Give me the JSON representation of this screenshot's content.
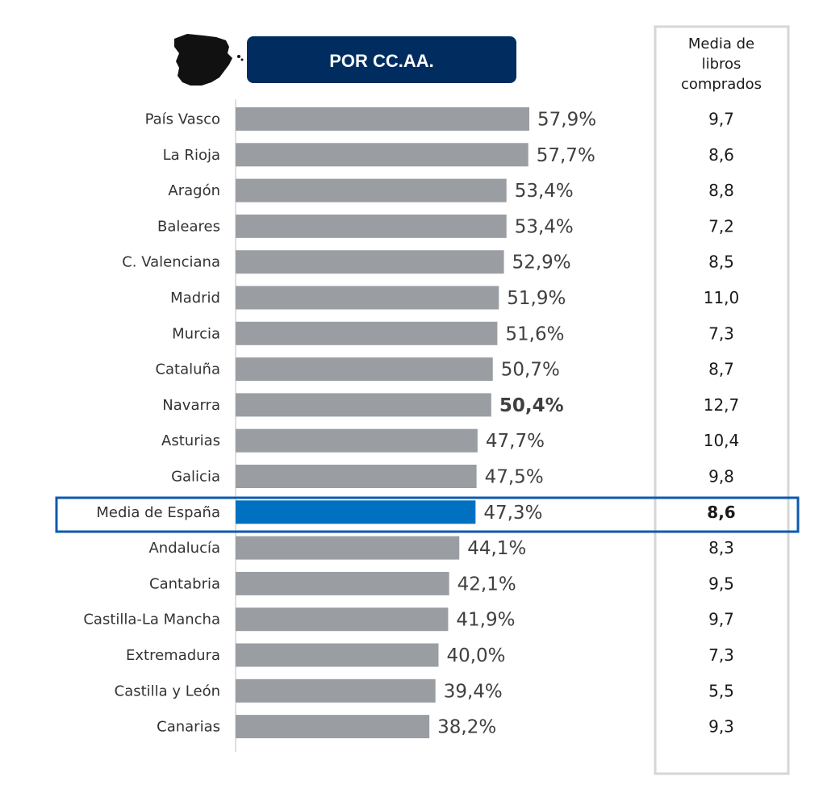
{
  "header": {
    "title": "POR CC.AA.",
    "title_bg": "#002C5F",
    "map_icon": "spain-map-icon"
  },
  "side_column": {
    "header_lines": [
      "Media de",
      "libros",
      "comprados"
    ]
  },
  "colors": {
    "bar": "#9a9ea3",
    "highlight_bar": "#0070C0",
    "highlight_frame": "#0E5AAE",
    "side_frame": "#d6d6d6"
  },
  "chart_data": {
    "type": "bar",
    "orientation": "horizontal",
    "xlim": [
      0,
      100
    ],
    "categories": [
      "País Vasco",
      "La Rioja",
      "Aragón",
      "Baleares",
      "C. Valenciana",
      "Madrid",
      "Murcia",
      "Cataluña",
      "Navarra",
      "Asturias",
      "Galicia",
      "Media de España",
      "Andalucía",
      "Cantabria",
      "Castilla-La Mancha",
      "Extremadura",
      "Castilla y León",
      "Canarias"
    ],
    "values": [
      57.9,
      57.7,
      53.4,
      53.4,
      52.9,
      51.9,
      51.6,
      50.7,
      50.4,
      47.7,
      47.5,
      47.3,
      44.1,
      42.1,
      41.9,
      40.0,
      39.4,
      38.2
    ],
    "value_labels": [
      "57,9%",
      "57,7%",
      "53,4%",
      "53,4%",
      "52,9%",
      "51,9%",
      "51,6%",
      "50,7%",
      "50,4%",
      "47,7%",
      "47,5%",
      "47,3%",
      "44,1%",
      "42,1%",
      "41,9%",
      "40,0%",
      "39,4%",
      "38,2%"
    ],
    "books_purchased": [
      "9,7",
      "8,6",
      "8,8",
      "7,2",
      "8,5",
      "11,0",
      "7,3",
      "8,7",
      "12,7",
      "10,4",
      "9,8",
      "8,6",
      "8,3",
      "9,5",
      "9,7",
      "7,3",
      "5,5",
      "9,3"
    ],
    "highlight_category": "Media de España",
    "bold_value_category": "Navarra",
    "bold_side_category": "Media de España",
    "grid": false,
    "legend": "none"
  }
}
